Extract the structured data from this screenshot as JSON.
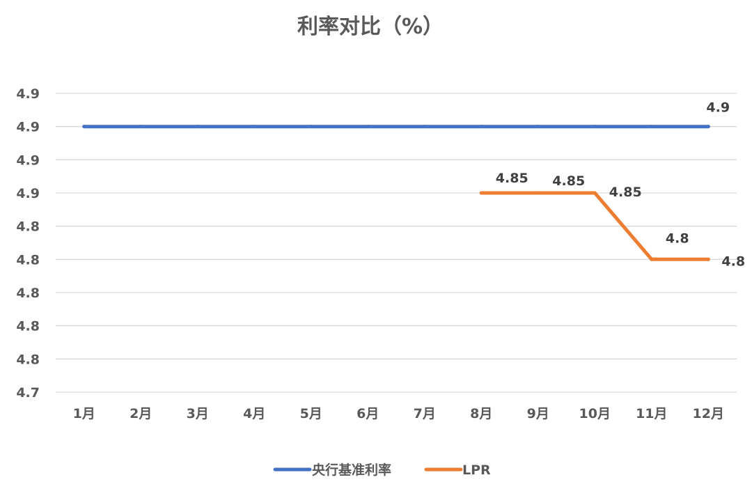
{
  "chart_data": {
    "type": "line",
    "title": "利率对比（%）",
    "xlabel": "",
    "ylabel": "",
    "categories": [
      "1月",
      "2月",
      "3月",
      "4月",
      "5月",
      "6月",
      "7月",
      "8月",
      "9月",
      "10月",
      "11月",
      "12月"
    ],
    "ylim": [
      4.7,
      4.9
    ],
    "y_ticks": [
      4.7,
      4.725,
      4.75,
      4.775,
      4.8,
      4.825,
      4.85,
      4.875,
      4.9,
      4.925
    ],
    "y_tick_labels": [
      "4.7",
      "4.8",
      "4.8",
      "4.8",
      "4.8",
      "4.8",
      "4.9",
      "4.9",
      "4.9",
      "4.9"
    ],
    "grid": true,
    "legend_position": "bottom",
    "series": [
      {
        "name": "央行基准利率",
        "color": "#4472C4",
        "values": [
          4.9,
          4.9,
          4.9,
          4.9,
          4.9,
          4.9,
          4.9,
          4.9,
          4.9,
          4.9,
          4.9,
          4.9
        ],
        "data_labels": [
          {
            "index": 11,
            "text": "4.9"
          }
        ]
      },
      {
        "name": "LPR",
        "color": "#ED7D31",
        "values": [
          null,
          null,
          null,
          null,
          null,
          null,
          null,
          4.85,
          4.85,
          4.85,
          4.8,
          4.8
        ],
        "data_labels": [
          {
            "index": 7,
            "text": "4.85"
          },
          {
            "index": 8,
            "text": "4.85"
          },
          {
            "index": 9,
            "text": "4.85"
          },
          {
            "index": 10,
            "text": "4.8"
          },
          {
            "index": 11,
            "text": "4.8"
          }
        ]
      }
    ]
  }
}
